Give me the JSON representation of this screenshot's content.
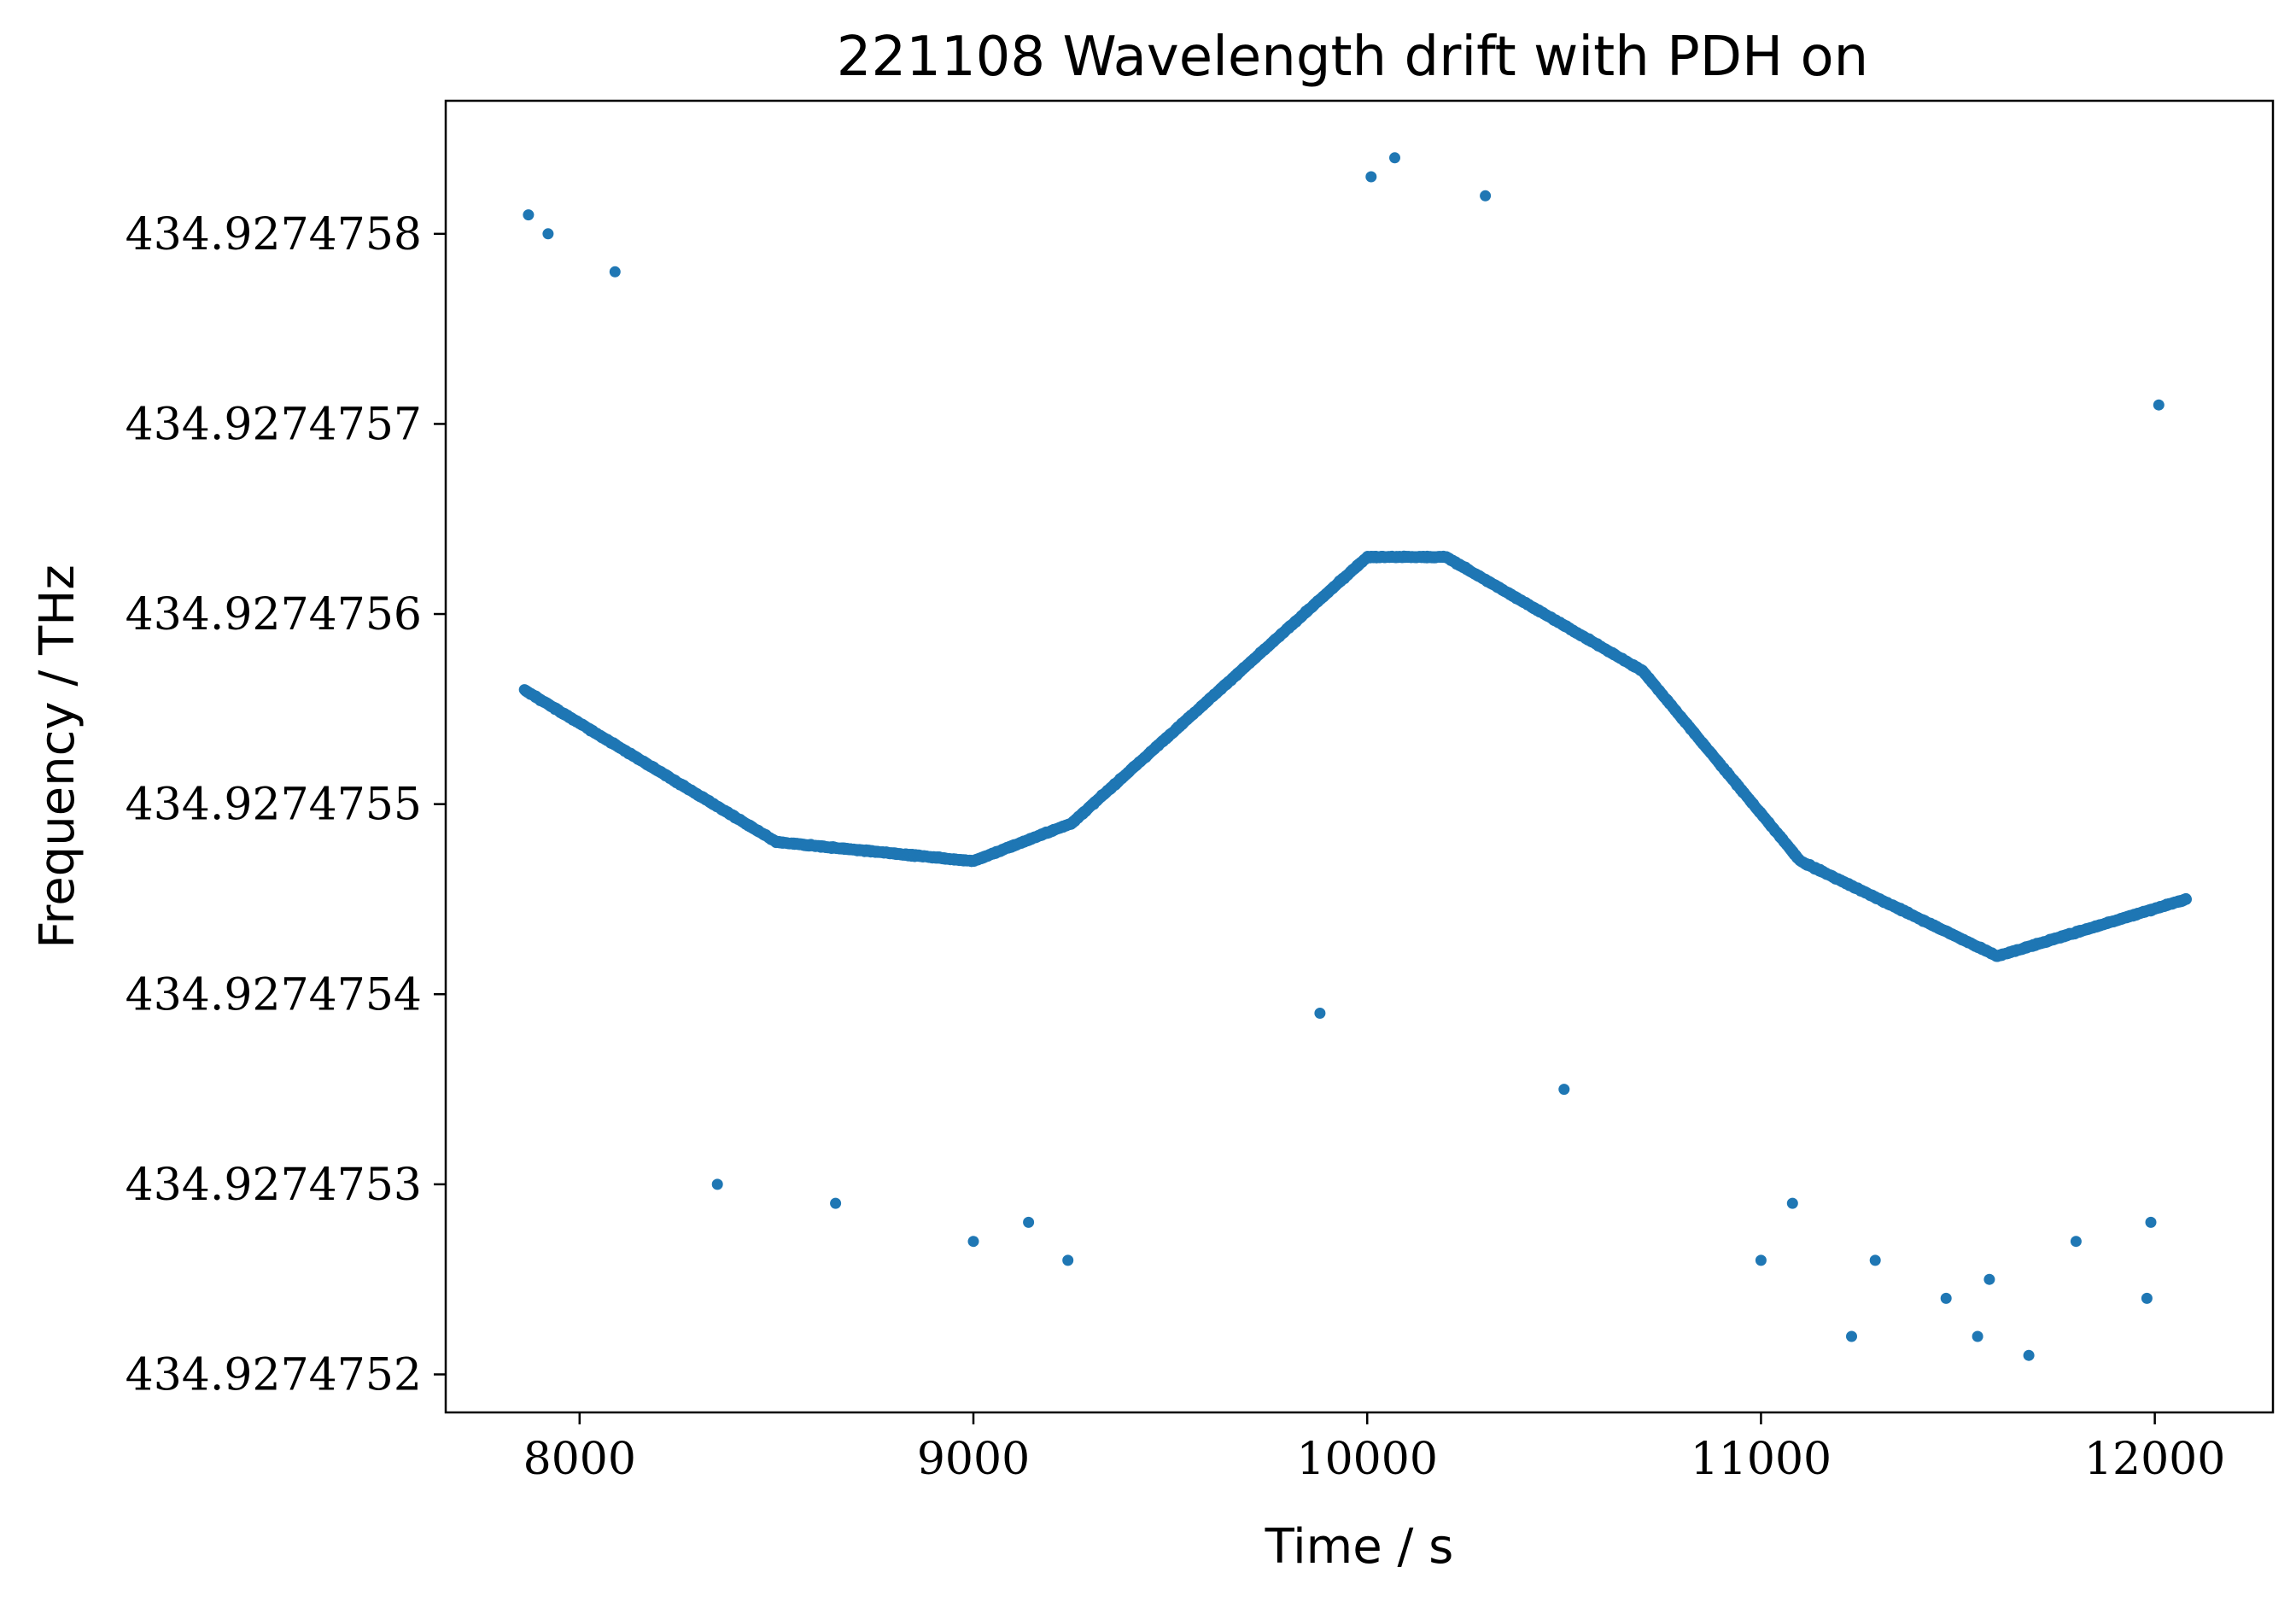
{
  "chart_data": {
    "type": "scatter",
    "title": "221108 Wavelength drift with PDH on",
    "xlabel": "Time / s",
    "ylabel": "Frequency / THz",
    "xlim": [
      7660,
      12300
    ],
    "ylim": [
      434.92747518,
      434.92747587
    ],
    "x_ticks": [
      8000,
      9000,
      10000,
      11000,
      12000
    ],
    "x_tick_labels": [
      "8000",
      "9000",
      "10000",
      "11000",
      "12000"
    ],
    "y_ticks": [
      434.9274752,
      434.9274753,
      434.9274754,
      434.9274755,
      434.9274756,
      434.9274757,
      434.9274758
    ],
    "y_tick_labels": [
      "434.9274752",
      "434.9274753",
      "434.9274754",
      "434.9274755",
      "434.9274756",
      "434.9274757",
      "434.9274758"
    ],
    "grid": false,
    "marker_color": "#1f77b4",
    "series": [
      {
        "x_start": 7860,
        "x_end": 12080,
        "trend_x": [
          7860,
          8500,
          9000,
          9250,
          10000,
          10200,
          10700,
          11100,
          11600,
          12080
        ],
        "trend_y": [
          434.92747556,
          434.92747548,
          434.92747547,
          434.92747549,
          434.92747563,
          434.92747563,
          434.92747557,
          434.92747547,
          434.92747542,
          434.92747545
        ],
        "spread": 7e-10,
        "outliers_x": [
          7870,
          7920,
          8090,
          8350,
          8650,
          9000,
          9140,
          9240,
          9880,
          10010,
          10070,
          10300,
          10500,
          11000,
          11080,
          11230,
          11290,
          11470,
          11550,
          11580,
          11680,
          11800,
          11980,
          11990,
          12010
        ],
        "outliers_y": [
          434.92747581,
          434.9274758,
          434.92747578,
          434.9274753,
          434.92747529,
          434.92747527,
          434.92747528,
          434.92747526,
          434.92747539,
          434.92747583,
          434.92747584,
          434.92747582,
          434.92747535,
          434.92747526,
          434.92747529,
          434.92747522,
          434.92747526,
          434.92747524,
          434.92747522,
          434.92747525,
          434.92747521,
          434.92747527,
          434.92747524,
          434.92747528,
          434.92747571
        ]
      }
    ]
  }
}
